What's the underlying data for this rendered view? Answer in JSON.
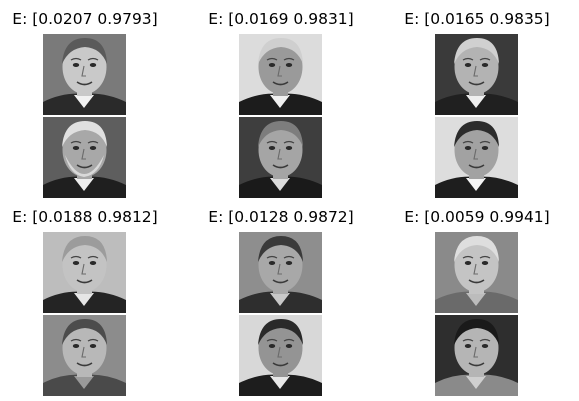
{
  "panels": [
    {
      "title": "E: [0.0207 0.9793]",
      "faces": [
        {
          "name": "face-1-top",
          "bg": "#7a7a7a",
          "skin": "#c9c9c9",
          "hair": "#5a5a5a",
          "suit": "#2a2a2a",
          "shirt": "#f2f2f2",
          "beard": ""
        },
        {
          "name": "face-1-bottom",
          "bg": "#5e5e5e",
          "skin": "#a8a8a8",
          "hair": "#e0e0e0",
          "suit": "#1f1f1f",
          "shirt": "#eeeeee",
          "beard": "#d9d9d9"
        }
      ]
    },
    {
      "title": "E: [0.0169 0.9831]",
      "faces": [
        {
          "name": "face-2-top",
          "bg": "#dcdcdc",
          "skin": "#9a9a9a",
          "hair": "#cfcfcf",
          "suit": "#1c1c1c",
          "shirt": "#f0f0f0",
          "beard": ""
        },
        {
          "name": "face-2-bottom",
          "bg": "#3e3e3e",
          "skin": "#a5a5a5",
          "hair": "#7d7d7d",
          "suit": "#1a1a1a",
          "shirt": "#dcdcdc",
          "beard": ""
        }
      ]
    },
    {
      "title": "E: [0.0165 0.9835]",
      "faces": [
        {
          "name": "face-3-top",
          "bg": "#3a3a3a",
          "skin": "#b3b3b3",
          "hair": "#d0d0d0",
          "suit": "#202020",
          "shirt": "#efefef",
          "beard": ""
        },
        {
          "name": "face-3-bottom",
          "bg": "#dddddd",
          "skin": "#a2a2a2",
          "hair": "#2c2c2c",
          "suit": "#1e1e1e",
          "shirt": "#f4f4f4",
          "beard": ""
        }
      ]
    },
    {
      "title": "E: [0.0188 0.9812]",
      "faces": [
        {
          "name": "face-4-top",
          "bg": "#bdbdbd",
          "skin": "#c3c3c3",
          "hair": "#9c9c9c",
          "suit": "#242424",
          "shirt": "#e6e6e6",
          "beard": ""
        },
        {
          "name": "face-4-bottom",
          "bg": "#8c8c8c",
          "skin": "#b8b8b8",
          "hair": "#4c4c4c",
          "suit": "#4a4a4a",
          "shirt": "#9a9a9a",
          "beard": ""
        }
      ]
    },
    {
      "title": "E: [0.0128 0.9872]",
      "faces": [
        {
          "name": "face-5-top",
          "bg": "#8e8e8e",
          "skin": "#a8a8a8",
          "hair": "#3a3a3a",
          "suit": "#2e2e2e",
          "shirt": "#c8c8c8",
          "beard": ""
        },
        {
          "name": "face-5-bottom",
          "bg": "#d8d8d8",
          "skin": "#949494",
          "hair": "#2a2a2a",
          "suit": "#1d1d1d",
          "shirt": "#e8e8e8",
          "beard": ""
        }
      ]
    },
    {
      "title": "E: [0.0059 0.9941]",
      "faces": [
        {
          "name": "face-6-top",
          "bg": "#8a8a8a",
          "skin": "#c4c4c4",
          "hair": "#dedede",
          "suit": "#6a6a6a",
          "shirt": "#bcbcbc",
          "beard": ""
        },
        {
          "name": "face-6-bottom",
          "bg": "#2e2e2e",
          "skin": "#b5b5b5",
          "hair": "#1a1a1a",
          "suit": "#8a8a8a",
          "shirt": "#cfcfcf",
          "beard": ""
        }
      ]
    }
  ]
}
